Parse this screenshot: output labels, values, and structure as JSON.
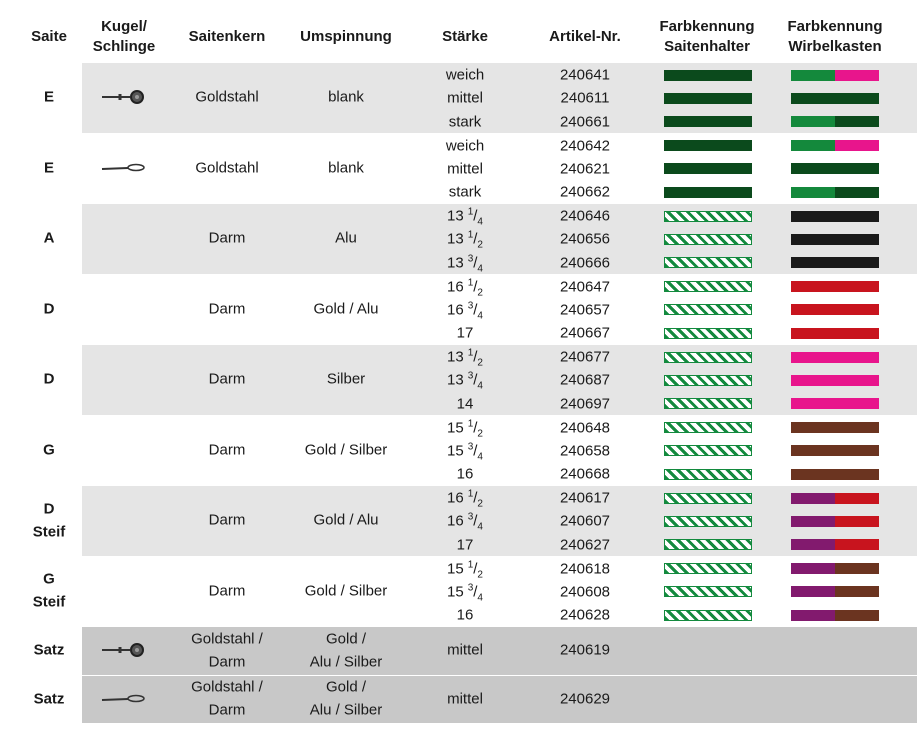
{
  "header": {
    "saite": [
      "Saite"
    ],
    "kugel": [
      "Kugel/",
      "Schlinge"
    ],
    "kern": [
      "Saitenkern"
    ],
    "umspinnung": [
      "Umspinnung"
    ],
    "staerke": [
      "Stärke"
    ],
    "artikel": [
      "Artikel-Nr."
    ],
    "halter": [
      "Farbkennung",
      "Saitenhalter"
    ],
    "wirbel": [
      "Farbkennung",
      "Wirbelkasten"
    ]
  },
  "groups": [
    {
      "saite": [
        "E"
      ],
      "kern": [
        "Goldstahl"
      ],
      "umspinnung": [
        "blank"
      ],
      "rows": [
        {
          "staerke": "weich",
          "artikel": "240641",
          "halter": [
            "#0b4a1c"
          ],
          "wirbel": [
            "#14893c",
            "#e8158c"
          ]
        },
        {
          "staerke": "mittel",
          "artikel": "240611",
          "halter": [
            "#0b4a1c"
          ],
          "wirbel": [
            "#0b4a1c"
          ]
        },
        {
          "staerke": "stark",
          "artikel": "240661",
          "halter": [
            "#0b4a1c"
          ],
          "wirbel": [
            "#14893c",
            "#0b4a1c"
          ]
        }
      ]
    },
    {
      "saite": [
        "E"
      ],
      "kern": [
        "Goldstahl"
      ],
      "umspinnung": [
        "blank"
      ],
      "rows": [
        {
          "staerke": "weich",
          "artikel": "240642",
          "halter": [
            "#0b4a1c"
          ],
          "wirbel": [
            "#14893c",
            "#e8158c"
          ]
        },
        {
          "staerke": "mittel",
          "artikel": "240621",
          "halter": [
            "#0b4a1c"
          ],
          "wirbel": [
            "#0b4a1c"
          ]
        },
        {
          "staerke": "stark",
          "artikel": "240662",
          "halter": [
            "#0b4a1c"
          ],
          "wirbel": [
            "#14893c",
            "#0b4a1c"
          ]
        }
      ]
    },
    {
      "saite": [
        "A"
      ],
      "kern": [
        "Darm"
      ],
      "umspinnung": [
        "Alu"
      ],
      "rows": [
        {
          "staerke": {
            "whole": "13",
            "num": "1",
            "slash": "/",
            "den": "4"
          },
          "artikel": "240646",
          "halter": [
            "#138a3e",
            "#ffffff"
          ],
          "wirbel": [
            "#1a1a1a"
          ]
        },
        {
          "staerke": {
            "whole": "13",
            "num": "1",
            "slash": "/",
            "den": "2"
          },
          "artikel": "240656",
          "halter": [
            "#138a3e",
            "#ffffff"
          ],
          "wirbel": [
            "#1a1a1a"
          ]
        },
        {
          "staerke": {
            "whole": "13",
            "num": "3",
            "slash": "/",
            "den": "4"
          },
          "artikel": "240666",
          "halter": [
            "#138a3e",
            "#ffffff"
          ],
          "wirbel": [
            "#1a1a1a"
          ]
        }
      ]
    },
    {
      "saite": [
        "D"
      ],
      "kern": [
        "Darm"
      ],
      "umspinnung": [
        "Gold / Alu"
      ],
      "rows": [
        {
          "staerke": {
            "whole": "16",
            "num": "1",
            "slash": "/",
            "den": "2"
          },
          "artikel": "240647",
          "halter": [
            "#138a3e",
            "#ffffff"
          ],
          "wirbel": [
            "#c8141e"
          ]
        },
        {
          "staerke": {
            "whole": "16",
            "num": "3",
            "slash": "/",
            "den": "4"
          },
          "artikel": "240657",
          "halter": [
            "#138a3e",
            "#ffffff"
          ],
          "wirbel": [
            "#c8141e"
          ]
        },
        {
          "staerke": "17",
          "artikel": "240667",
          "halter": [
            "#138a3e",
            "#ffffff"
          ],
          "wirbel": [
            "#c8141e"
          ]
        }
      ]
    },
    {
      "saite": [
        "D"
      ],
      "kern": [
        "Darm"
      ],
      "umspinnung": [
        "Silber"
      ],
      "rows": [
        {
          "staerke": {
            "whole": "13",
            "num": "1",
            "slash": "/",
            "den": "2"
          },
          "artikel": "240677",
          "halter": [
            "#138a3e",
            "#ffffff"
          ],
          "wirbel": [
            "#e8158c"
          ]
        },
        {
          "staerke": {
            "whole": "13",
            "num": "3",
            "slash": "/",
            "den": "4"
          },
          "artikel": "240687",
          "halter": [
            "#138a3e",
            "#ffffff"
          ],
          "wirbel": [
            "#e8158c"
          ]
        },
        {
          "staerke": "14",
          "artikel": "240697",
          "halter": [
            "#138a3e",
            "#ffffff"
          ],
          "wirbel": [
            "#e8158c"
          ]
        }
      ]
    },
    {
      "saite": [
        "G"
      ],
      "kern": [
        "Darm"
      ],
      "umspinnung": [
        "Gold / Silber"
      ],
      "rows": [
        {
          "staerke": {
            "whole": "15",
            "num": "1",
            "slash": "/",
            "den": "2"
          },
          "artikel": "240648",
          "halter": [
            "#138a3e",
            "#ffffff"
          ],
          "wirbel": [
            "#6b3420"
          ]
        },
        {
          "staerke": {
            "whole": "15",
            "num": "3",
            "slash": "/",
            "den": "4"
          },
          "artikel": "240658",
          "halter": [
            "#138a3e",
            "#ffffff"
          ],
          "wirbel": [
            "#6b3420"
          ]
        },
        {
          "staerke": "16",
          "artikel": "240668",
          "halter": [
            "#138a3e",
            "#ffffff"
          ],
          "wirbel": [
            "#6b3420"
          ]
        }
      ]
    },
    {
      "saite": [
        "D",
        "Steif"
      ],
      "kern": [
        "Darm"
      ],
      "umspinnung": [
        "Gold / Alu"
      ],
      "rows": [
        {
          "staerke": {
            "whole": "16",
            "num": "1",
            "slash": "/",
            "den": "2"
          },
          "artikel": "240617",
          "halter": [
            "#138a3e",
            "#ffffff"
          ],
          "wirbel": [
            "#821a6e",
            "#c8141e"
          ]
        },
        {
          "staerke": {
            "whole": "16",
            "num": "3",
            "slash": "/",
            "den": "4"
          },
          "artikel": "240607",
          "halter": [
            "#138a3e",
            "#ffffff"
          ],
          "wirbel": [
            "#821a6e",
            "#c8141e"
          ]
        },
        {
          "staerke": "17",
          "artikel": "240627",
          "halter": [
            "#138a3e",
            "#ffffff"
          ],
          "wirbel": [
            "#821a6e",
            "#c8141e"
          ]
        }
      ]
    },
    {
      "saite": [
        "G",
        "Steif"
      ],
      "kern": [
        "Darm"
      ],
      "umspinnung": [
        "Gold / Silber"
      ],
      "rows": [
        {
          "staerke": {
            "whole": "15",
            "num": "1",
            "slash": "/",
            "den": "2"
          },
          "artikel": "240618",
          "halter": [
            "#138a3e",
            "#ffffff"
          ],
          "wirbel": [
            "#821a6e",
            "#6b3420"
          ]
        },
        {
          "staerke": {
            "whole": "15",
            "num": "3",
            "slash": "/",
            "den": "4"
          },
          "artikel": "240608",
          "halter": [
            "#138a3e",
            "#ffffff"
          ],
          "wirbel": [
            "#821a6e",
            "#6b3420"
          ]
        },
        {
          "staerke": "16",
          "artikel": "240628",
          "halter": [
            "#138a3e",
            "#ffffff"
          ],
          "wirbel": [
            "#821a6e",
            "#6b3420"
          ]
        }
      ]
    },
    {
      "saite": [
        "Satz"
      ],
      "kern": [
        "Goldstahl /",
        "Darm"
      ],
      "umspinnung": [
        "Gold /",
        "Alu / Silber"
      ],
      "rows": [
        {
          "staerke": "mittel",
          "artikel": "240619"
        }
      ]
    },
    {
      "saite": [
        "Satz"
      ],
      "kern": [
        "Goldstahl /",
        "Darm"
      ],
      "umspinnung": [
        "Gold /",
        "Alu / Silber"
      ],
      "rows": [
        {
          "staerke": "mittel",
          "artikel": "240629"
        }
      ]
    }
  ]
}
